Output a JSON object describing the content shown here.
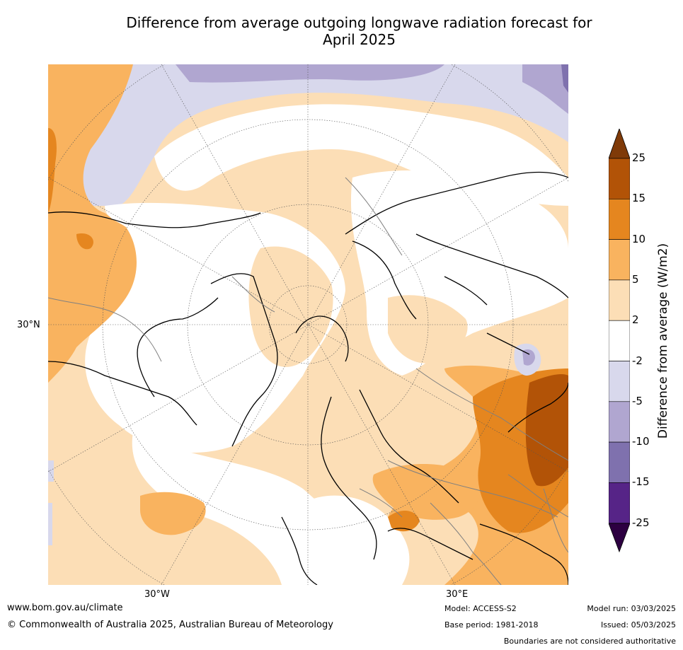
{
  "title_line1": "Difference from average outgoing longwave radiation forecast for",
  "title_line2": "April 2025",
  "map": {
    "lat_label": "30°N",
    "lon_labels": [
      "30°W",
      "30°E"
    ],
    "colors": {
      "neg25": "#3f0a54",
      "neg15": "#562487",
      "neg10": "#7f71ae",
      "neg5": "#b0a6d0",
      "neg2": "#d8d8ec",
      "zero": "#ffffff",
      "pos2": "#fcdeb6",
      "pos5": "#f9b35f",
      "pos10": "#e5861f",
      "pos15": "#b25307",
      "pos25": "#7f3a08"
    }
  },
  "colorbar": {
    "label": "Difference from average (W/m2)",
    "ticks": [
      "25",
      "15",
      "10",
      "5",
      "2",
      "-2",
      "-5",
      "-10",
      "-15",
      "-25"
    ],
    "colors": [
      "#b25307",
      "#e5861f",
      "#f9b35f",
      "#fcdeb6",
      "#ffffff",
      "#d8d8ec",
      "#b0a6d0",
      "#7f71ae",
      "#562487"
    ],
    "top_arrow_color": "#7f3a08",
    "bottom_arrow_color": "#2d0041"
  },
  "footer": {
    "website": "www.bom.gov.au/climate",
    "copyright": "© Commonwealth of Australia 2025, Australian Bureau of Meteorology",
    "model": "Model: ACCESS-S2",
    "base_period": "Base period: 1981-2018",
    "model_run": "Model run: 03/03/2025",
    "issued": "Issued: 05/03/2025",
    "disclaimer": "Boundaries are not considered authoritative"
  }
}
